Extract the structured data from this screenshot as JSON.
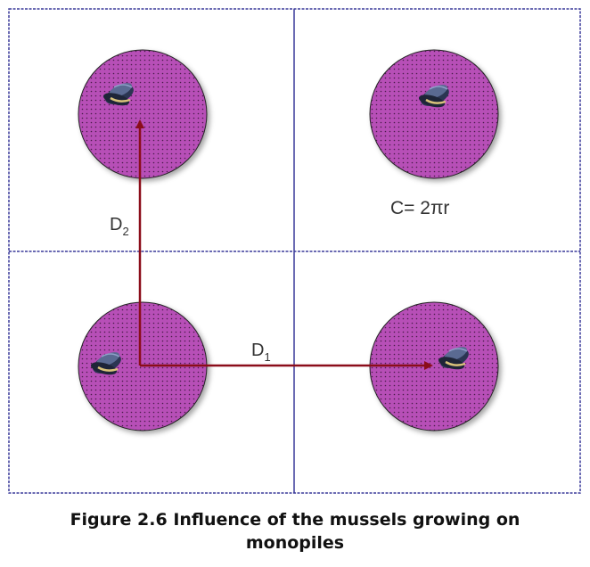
{
  "labels": {
    "d2_main": "D",
    "d2_sub": "2",
    "d1_main": "D",
    "d1_sub": "1",
    "circumference": "C= 2πr"
  },
  "caption": {
    "line1": "Figure 2.6 Influence of the mussels growing on",
    "line2": "monopiles"
  },
  "colors": {
    "monopile_fill": "#b74fb7",
    "grid_line": "#3a3a9a",
    "arrow": "#8b0d1a"
  },
  "icons": {
    "mussel": "mussel-icon"
  }
}
